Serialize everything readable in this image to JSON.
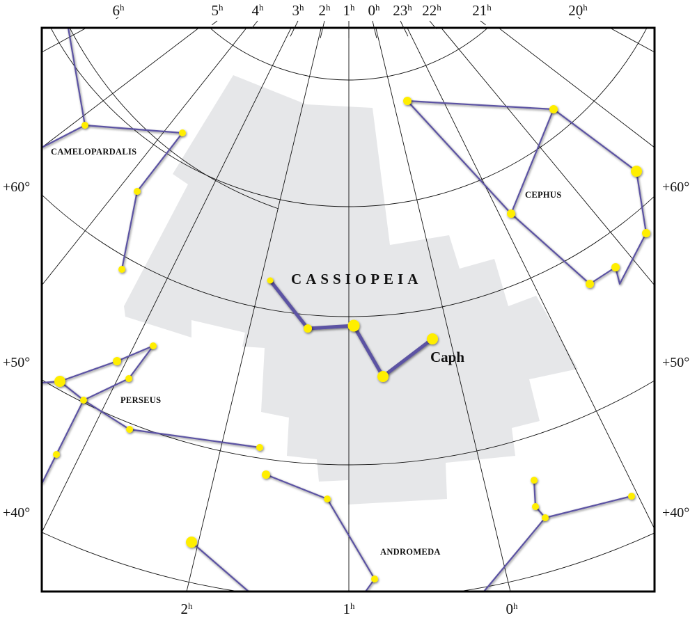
{
  "colors": {
    "constellation_line": "#5b52a3",
    "star": "#ffee00",
    "boundary_fill": "#e6e7e9",
    "grid": "#111111",
    "frame": "#000000"
  },
  "ra_labels_top": [
    "6",
    "5",
    "4",
    "3",
    "2",
    "1",
    "0",
    "23",
    "22",
    "21",
    "20"
  ],
  "ra_labels_bottom": [
    "2",
    "1",
    "0"
  ],
  "ra_suffix": "h",
  "dec_labels": [
    "+60°",
    "+50°",
    "+40°"
  ],
  "constellations": {
    "main": "CASSIOPEIA",
    "others": [
      "CAMELOPARDALIS",
      "CEPHUS",
      "PERSEUS",
      "ANDROMEDA"
    ]
  },
  "star_names": [
    "Caph"
  ]
}
